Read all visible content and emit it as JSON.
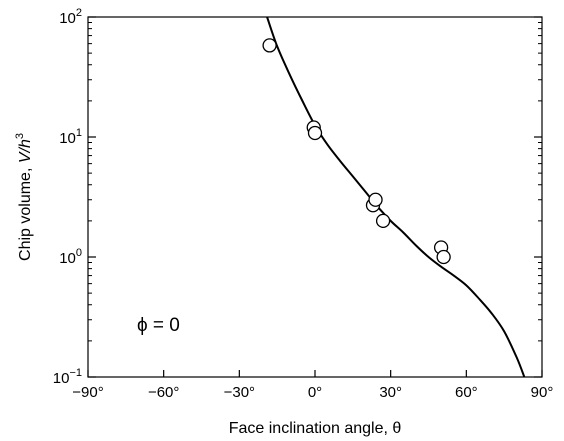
{
  "chart_data": {
    "type": "scatter",
    "xlabel": "Face inclination angle, θ",
    "ylabel": "Chip volume, ",
    "ylabel_italic": "V/h",
    "ylabel_sup": "3",
    "annotation": "ϕ = 0",
    "xlim": [
      -90,
      90
    ],
    "ylim": [
      0.1,
      100
    ],
    "yscale": "log",
    "grid": false,
    "x_ticks": [
      {
        "value": -90,
        "label": "−90°"
      },
      {
        "value": -60,
        "label": "−60°"
      },
      {
        "value": -30,
        "label": "−30°"
      },
      {
        "value": 0,
        "label": "0°"
      },
      {
        "value": 30,
        "label": "30°"
      },
      {
        "value": 60,
        "label": "60°"
      },
      {
        "value": 90,
        "label": "90°"
      }
    ],
    "y_ticks": [
      {
        "value": 0.1,
        "base": "10",
        "exp": "−1"
      },
      {
        "value": 1,
        "base": "10",
        "exp": "0"
      },
      {
        "value": 10,
        "base": "10",
        "exp": "1"
      },
      {
        "value": 100,
        "base": "10",
        "exp": "2"
      }
    ],
    "series": [
      {
        "kind": "points",
        "points": [
          {
            "x": -18,
            "y": 58
          },
          {
            "x": -0.5,
            "y": 12
          },
          {
            "x": 0,
            "y": 10.8
          },
          {
            "x": 23,
            "y": 2.7
          },
          {
            "x": 24,
            "y": 3.0
          },
          {
            "x": 27,
            "y": 2.0
          },
          {
            "x": 50,
            "y": 1.2
          },
          {
            "x": 51,
            "y": 1.0
          }
        ]
      },
      {
        "kind": "curve",
        "points": [
          {
            "x": -19,
            "y": 100
          },
          {
            "x": -15,
            "y": 57
          },
          {
            "x": -10,
            "y": 33
          },
          {
            "x": -5,
            "y": 20
          },
          {
            "x": 0,
            "y": 12.5
          },
          {
            "x": 5,
            "y": 8.6
          },
          {
            "x": 10,
            "y": 6.3
          },
          {
            "x": 15,
            "y": 4.7
          },
          {
            "x": 20,
            "y": 3.5
          },
          {
            "x": 25,
            "y": 2.6
          },
          {
            "x": 30,
            "y": 2.0
          },
          {
            "x": 35,
            "y": 1.6
          },
          {
            "x": 40,
            "y": 1.25
          },
          {
            "x": 45,
            "y": 1.0
          },
          {
            "x": 50,
            "y": 0.83
          },
          {
            "x": 55,
            "y": 0.7
          },
          {
            "x": 60,
            "y": 0.58
          },
          {
            "x": 65,
            "y": 0.45
          },
          {
            "x": 70,
            "y": 0.34
          },
          {
            "x": 75,
            "y": 0.24
          },
          {
            "x": 80,
            "y": 0.145
          },
          {
            "x": 83,
            "y": 0.1
          }
        ]
      }
    ]
  }
}
